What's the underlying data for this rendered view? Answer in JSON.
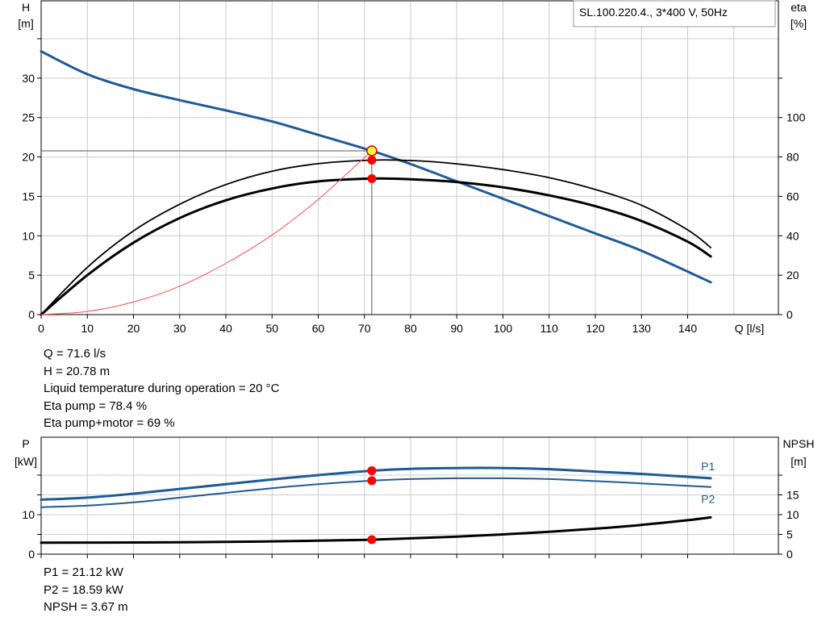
{
  "colors": {
    "head_curve": "#1f5a96",
    "power_curve": "#1f5a96",
    "efficiency_curve": "#000000",
    "system_curve": "#ff4d4d",
    "operating_point": "#ff0000",
    "duty_marker_fill": "#ffff33",
    "grid": "#cccccc"
  },
  "info_main": [
    {
      "label": "Q",
      "value": "71.6 l/s"
    },
    {
      "label": "H",
      "value": "20.78 m"
    },
    {
      "label": "Liquid temperature during operation",
      "value": "20 °C"
    },
    {
      "label": "Eta pump",
      "value": "78.4 %"
    },
    {
      "label": "Eta pump+motor",
      "value": "69 %"
    }
  ],
  "info_power": [
    {
      "label": "P1",
      "value": "21.12 kW"
    },
    {
      "label": "P2",
      "value": "18.59 kW"
    },
    {
      "label": "NPSH",
      "value": "3.67 m"
    }
  ],
  "chart_data": [
    {
      "type": "line",
      "title": "SL.100.220.4., 3*400 V, 50Hz",
      "ylabel_left": [
        "H",
        "[m]"
      ],
      "ylabel_right": [
        "eta",
        "[%]"
      ],
      "xlabel": "Q [l/s]",
      "xlim": [
        0,
        150
      ],
      "xticks": [
        0,
        10,
        20,
        30,
        40,
        50,
        60,
        70,
        80,
        90,
        100,
        110,
        120,
        130,
        140
      ],
      "ylim_left": [
        0,
        35
      ],
      "yticks_left": [
        0,
        5,
        10,
        15,
        20,
        25,
        30
      ],
      "ylim_right": [
        0,
        140
      ],
      "yticks_right": [
        0,
        20,
        40,
        60,
        80,
        100
      ],
      "grid": true,
      "operating_point": {
        "q": 71.6,
        "h": 20.78
      },
      "series": [
        {
          "key": "H",
          "axis": "left",
          "width": 3,
          "x": [
            0,
            10,
            20,
            30,
            40,
            50,
            60,
            71.6,
            80,
            90,
            100,
            110,
            120,
            130,
            145
          ],
          "y": [
            33.4,
            30.5,
            28.6,
            27.2,
            25.9,
            24.5,
            22.8,
            20.78,
            19.1,
            16.9,
            14.7,
            12.5,
            10.3,
            8.1,
            4.1
          ]
        },
        {
          "key": "eta_pump",
          "axis": "right",
          "width": 1.8,
          "x": [
            0,
            10,
            20,
            30,
            40,
            50,
            60,
            71.6,
            80,
            90,
            100,
            110,
            120,
            130,
            140,
            145
          ],
          "y": [
            0,
            24,
            42.5,
            56,
            66,
            72.8,
            76.6,
            78.4,
            78.2,
            76.5,
            73.6,
            69.5,
            63.5,
            55.5,
            43,
            34
          ]
        },
        {
          "key": "eta_pump_motor",
          "axis": "right",
          "width": 3,
          "x": [
            0,
            10,
            20,
            30,
            40,
            50,
            60,
            71.6,
            80,
            90,
            100,
            110,
            120,
            130,
            140,
            145
          ],
          "y": [
            0,
            20,
            36.5,
            49,
            58,
            64,
            67.6,
            69,
            68.7,
            67.3,
            64.6,
            60.5,
            55,
            47.5,
            37,
            29.5
          ]
        },
        {
          "key": "system",
          "axis": "left",
          "width": 1,
          "x": [
            0,
            10,
            20,
            30,
            40,
            50,
            60,
            71.6
          ],
          "y": [
            0,
            0.4,
            1.6,
            3.6,
            6.5,
            10.1,
            14.6,
            20.78
          ]
        }
      ],
      "points": [
        {
          "x": 71.6,
          "y": 20.78,
          "axis": "left",
          "kind": "duty"
        },
        {
          "x": 71.6,
          "y": 78.4,
          "axis": "right",
          "kind": "op"
        },
        {
          "x": 71.6,
          "y": 69,
          "axis": "right",
          "kind": "op"
        }
      ]
    },
    {
      "type": "line",
      "ylabel_left": [
        "P",
        "[kW]"
      ],
      "ylabel_right": [
        "NPSH",
        "[m]"
      ],
      "xlim": [
        0,
        150
      ],
      "xticks": [
        0,
        10,
        20,
        30,
        40,
        50,
        60,
        70,
        80,
        90,
        100,
        110,
        120,
        130,
        140
      ],
      "ylim_left": [
        0,
        26
      ],
      "yticks_left": [
        0,
        10
      ],
      "ylim_right": [
        0,
        26
      ],
      "yticks_right": [
        0,
        5,
        10,
        15
      ],
      "grid": true,
      "series": [
        {
          "key": "P1",
          "name": "P1",
          "axis": "left",
          "width": 3,
          "x": [
            0,
            10,
            20,
            30,
            40,
            50,
            60,
            71.6,
            80,
            90,
            100,
            110,
            120,
            130,
            145
          ],
          "y": [
            13.8,
            14.3,
            15.3,
            16.5,
            17.7,
            18.9,
            20.0,
            21.12,
            21.6,
            21.8,
            21.8,
            21.5,
            20.9,
            20.3,
            19.2
          ]
        },
        {
          "key": "P2",
          "name": "P2",
          "axis": "left",
          "width": 2,
          "x": [
            0,
            10,
            20,
            30,
            40,
            50,
            60,
            71.6,
            80,
            90,
            100,
            110,
            120,
            130,
            145
          ],
          "y": [
            11.9,
            12.3,
            13.1,
            14.3,
            15.5,
            16.7,
            17.7,
            18.59,
            19.0,
            19.2,
            19.2,
            19.0,
            18.5,
            17.9,
            17.0
          ]
        },
        {
          "key": "NPSH",
          "axis": "right",
          "width": 3,
          "x": [
            0,
            20,
            40,
            60,
            71.6,
            80,
            90,
            100,
            110,
            120,
            130,
            140,
            145
          ],
          "y": [
            2.9,
            2.95,
            3.1,
            3.4,
            3.67,
            4.0,
            4.45,
            5.0,
            5.65,
            6.45,
            7.4,
            8.6,
            9.3
          ]
        }
      ],
      "points": [
        {
          "x": 71.6,
          "y": 21.12,
          "axis": "left",
          "kind": "op"
        },
        {
          "x": 71.6,
          "y": 18.59,
          "axis": "left",
          "kind": "op"
        },
        {
          "x": 71.6,
          "y": 3.67,
          "axis": "right",
          "kind": "op"
        }
      ]
    }
  ]
}
